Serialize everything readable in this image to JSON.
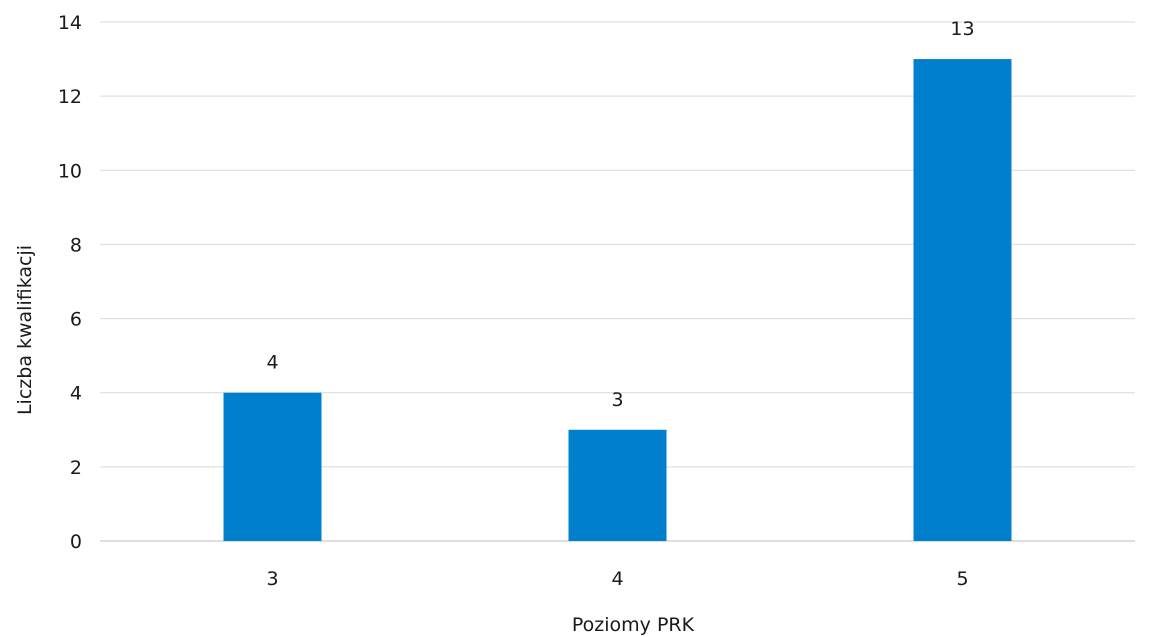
{
  "chart_data": {
    "type": "bar",
    "title": "",
    "xlabel": "Poziomy PRK",
    "ylabel": "Liczba kwalifikacji",
    "categories": [
      "3",
      "4",
      "5"
    ],
    "series": [
      {
        "values": [
          4,
          3,
          13
        ]
      }
    ],
    "data_labels": [
      "4",
      "3",
      "13"
    ],
    "ylim": [
      0,
      14
    ],
    "y_ticks": [
      "0",
      "2",
      "4",
      "6",
      "8",
      "10",
      "12",
      "14"
    ],
    "grid": true,
    "legend": "none",
    "colors": {
      "bar": "#0080cc"
    }
  }
}
